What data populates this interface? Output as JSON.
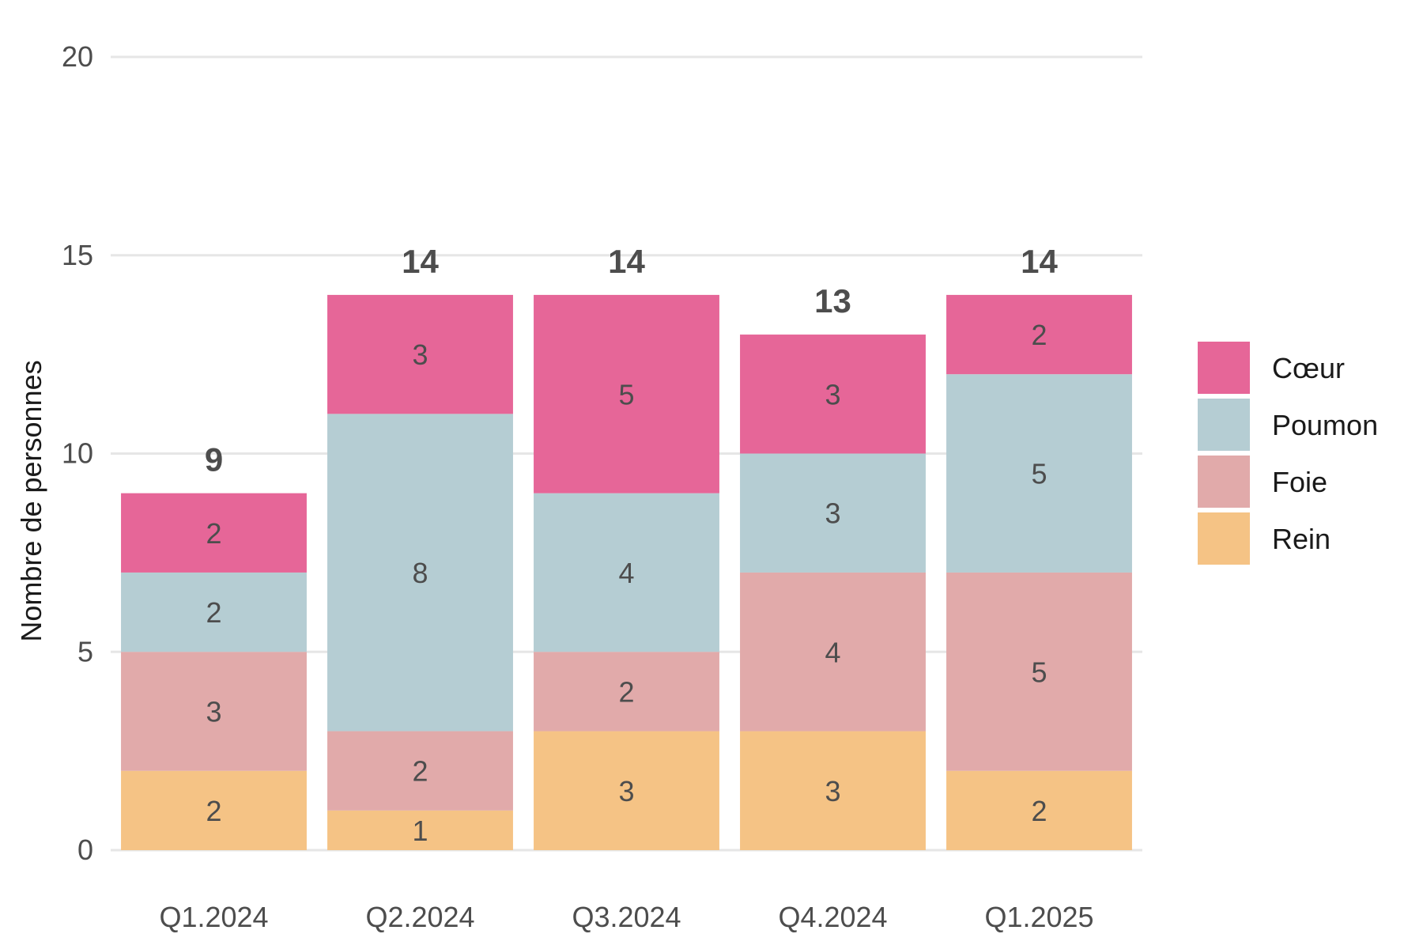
{
  "chart_data": {
    "type": "bar",
    "stacked": true,
    "categories": [
      "Q1.2024",
      "Q2.2024",
      "Q3.2024",
      "Q4.2024",
      "Q1.2025"
    ],
    "series": [
      {
        "name": "Rein",
        "color": "#f5c385",
        "values": [
          2,
          1,
          3,
          3,
          2
        ]
      },
      {
        "name": "Foie",
        "color": "#e1aaaa",
        "values": [
          3,
          2,
          2,
          4,
          5
        ]
      },
      {
        "name": "Poumon",
        "color": "#b5cdd3",
        "values": [
          2,
          8,
          4,
          3,
          5
        ]
      },
      {
        "name": "Cœur",
        "color": "#e66698",
        "values": [
          2,
          3,
          5,
          3,
          2
        ]
      }
    ],
    "totals": [
      9,
      14,
      14,
      13,
      14
    ],
    "title": "",
    "xlabel": "",
    "ylabel": "Nombre de personnes",
    "ylim": [
      0,
      20
    ],
    "yticks": [
      0,
      5,
      10,
      15,
      20
    ],
    "grid": true,
    "legend_position": "right",
    "legend_order": [
      "Cœur",
      "Poumon",
      "Foie",
      "Rein"
    ]
  }
}
